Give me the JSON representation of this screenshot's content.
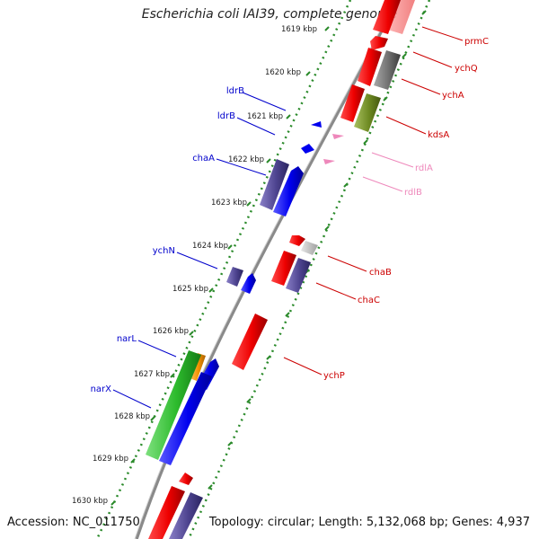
{
  "title": "Escherichia coli IAI39, complete genome",
  "footer": {
    "accession": "Accession: NC_011750",
    "summary": "Topology: circular; Length: 5,132,068 bp; Genes: 4,937"
  },
  "colors": {
    "axis": "#8a8a8a",
    "ticks": "#2a8a2a",
    "forward_label": "#0000cc",
    "reverse_label": "#cc0000",
    "rna_label": "#ee88bb"
  },
  "ticks": [
    {
      "label": "1619 kbp"
    },
    {
      "label": "1620 kbp"
    },
    {
      "label": "1621 kbp"
    },
    {
      "label": "1622 kbp"
    },
    {
      "label": "1623 kbp"
    },
    {
      "label": "1624 kbp"
    },
    {
      "label": "1625 kbp"
    },
    {
      "label": "1626 kbp"
    },
    {
      "label": "1627 kbp"
    },
    {
      "label": "1628 kbp"
    },
    {
      "label": "1629 kbp"
    },
    {
      "label": "1630 kbp"
    }
  ],
  "forward_labels": [
    {
      "name": "ldrB"
    },
    {
      "name": "ldrB"
    },
    {
      "name": "chaA"
    },
    {
      "name": "ychN"
    },
    {
      "name": "narL"
    },
    {
      "name": "narX"
    }
  ],
  "reverse_labels": [
    {
      "name": "prmC"
    },
    {
      "name": "ychQ"
    },
    {
      "name": "ychA"
    },
    {
      "name": "kdsA"
    },
    {
      "name": "rdlA"
    },
    {
      "name": "rdlB"
    },
    {
      "name": "chaB"
    },
    {
      "name": "chaC"
    },
    {
      "name": "ychP"
    }
  ]
}
